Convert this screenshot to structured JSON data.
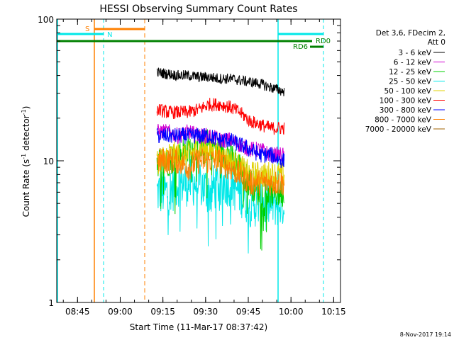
{
  "chart_data": {
    "type": "line",
    "title": "HESSI Observing Summary Count Rates",
    "xlabel": "Start Time (11-Mar-17 08:37:42)",
    "ylabel_main": "Count Rate (s",
    "ylabel_sup1": "-1",
    "ylabel_mid": " detector",
    "ylabel_sup2": "-1",
    "ylabel_end": ")",
    "yscale": "log",
    "ylim": [
      1,
      100
    ],
    "xlim_minutes": [
      8.633,
      10.275
    ],
    "x_ticks": [
      {
        "label": "08:45",
        "hour": 8.75
      },
      {
        "label": "09:00",
        "hour": 9.0
      },
      {
        "label": "09:15",
        "hour": 9.25
      },
      {
        "label": "09:30",
        "hour": 9.5
      },
      {
        "label": "09:45",
        "hour": 9.75
      },
      {
        "label": "10:00",
        "hour": 10.0
      },
      {
        "label": "10:15",
        "hour": 10.25
      }
    ],
    "y_ticks": [
      {
        "label": "1",
        "value": 1
      },
      {
        "label": "10",
        "value": 10
      },
      {
        "label": "100",
        "value": 100
      }
    ],
    "legend_header": [
      "Det 3,6, FDecim 2,",
      "Att 0"
    ],
    "series": [
      {
        "name": "3 - 6 keV",
        "color": "#000000",
        "values": [
          42,
          41,
          40,
          40,
          39,
          39,
          38,
          38,
          37,
          36,
          35,
          33,
          31
        ]
      },
      {
        "name": "6 - 12 keV",
        "color": "#d000d0",
        "values": [
          16,
          16,
          15,
          16,
          15,
          15,
          14,
          14,
          13,
          12,
          12,
          11,
          11
        ]
      },
      {
        "name": "12 - 25 keV",
        "color": "#00d000",
        "values": [
          10,
          10,
          11,
          12,
          13,
          13,
          12,
          11,
          9,
          7,
          6,
          6,
          6
        ]
      },
      {
        "name": "25 - 50 keV",
        "color": "#00e8e8",
        "values": [
          6,
          6,
          7,
          7,
          7,
          6,
          7,
          7,
          6,
          5,
          5,
          5,
          5
        ]
      },
      {
        "name": "50 - 100 keV",
        "color": "#e0d000",
        "values": [
          10,
          11,
          11,
          11,
          12,
          12,
          11,
          10,
          9,
          8,
          8,
          8,
          8
        ]
      },
      {
        "name": "100 - 300 keV",
        "color": "#ff0000",
        "values": [
          23,
          22,
          22,
          22,
          23,
          25,
          25,
          24,
          22,
          19,
          18,
          17,
          17
        ]
      },
      {
        "name": "300 - 800 keV",
        "color": "#0000ff",
        "values": [
          15,
          15,
          15,
          15,
          15,
          15,
          14,
          14,
          13,
          12,
          11,
          11,
          10
        ]
      },
      {
        "name": "800 - 7000 keV",
        "color": "#ff8000",
        "values": [
          10,
          10,
          10,
          9,
          10,
          10,
          10,
          9,
          8,
          7,
          7,
          7,
          7
        ]
      },
      {
        "name": "7000 - 20000 keV",
        "color": "#a06000",
        "values": []
      }
    ],
    "series_x_hours": [
      9.22,
      9.28,
      9.34,
      9.4,
      9.46,
      9.52,
      9.58,
      9.64,
      9.7,
      9.76,
      9.82,
      9.88,
      9.95
    ],
    "annotations": {
      "saa_label": "S",
      "night_label": "N",
      "rd0_label": "RD0",
      "rd6_label": "RD6",
      "saa_color": "#ff8000",
      "night_color": "#00e8e8",
      "rd_color": "#008000"
    },
    "footer": "8-Nov-2017 19:14"
  }
}
